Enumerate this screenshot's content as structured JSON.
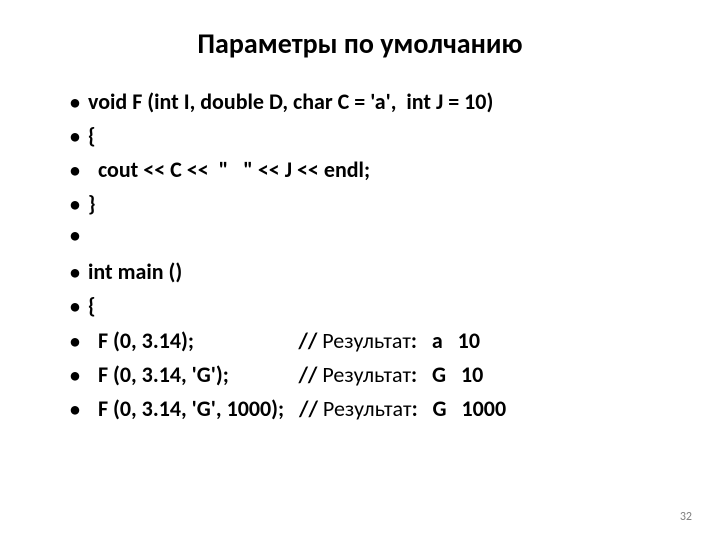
{
  "title": "Параметры по умолчанию",
  "bullets": [
    {
      "segments": [
        {
          "text": "void F (int I, double D, char C = 'a',  int J = 10)",
          "weight": "bold"
        }
      ]
    },
    {
      "segments": [
        {
          "text": "{",
          "weight": "bold"
        }
      ]
    },
    {
      "segments": [
        {
          "text": "  cout << C <<  \"   \" << J << endl;",
          "weight": "bold"
        }
      ]
    },
    {
      "segments": [
        {
          "text": "}",
          "weight": "bold"
        }
      ]
    },
    {
      "segments": [
        {
          "text": "",
          "weight": "bold"
        }
      ]
    },
    {
      "segments": [
        {
          "text": "int main ()",
          "weight": "bold"
        }
      ]
    },
    {
      "segments": [
        {
          "text": "{ ",
          "weight": "bold"
        }
      ]
    },
    {
      "segments": [
        {
          "text": "  F (0, 3.14);                     // ",
          "weight": "bold"
        },
        {
          "text": "Результат",
          "weight": "normal"
        },
        {
          "text": ":   a   10",
          "weight": "bold"
        }
      ]
    },
    {
      "segments": [
        {
          "text": "  F (0, 3.14, 'G');              // ",
          "weight": "bold"
        },
        {
          "text": "Результат",
          "weight": "normal"
        },
        {
          "text": ":   G   10",
          "weight": "bold"
        }
      ]
    },
    {
      "segments": [
        {
          "text": "  F (0, 3.14, 'G', 1000);   // ",
          "weight": "bold"
        },
        {
          "text": "Результат",
          "weight": "normal"
        },
        {
          "text": ":   G   1000",
          "weight": "bold"
        }
      ]
    }
  ],
  "page_number": "32",
  "style": {
    "background_color": "#ffffff",
    "text_color": "#000000",
    "title_fontsize": 28,
    "body_fontsize": 22,
    "bullet_marker": "•",
    "page_number_color": "#808080"
  }
}
